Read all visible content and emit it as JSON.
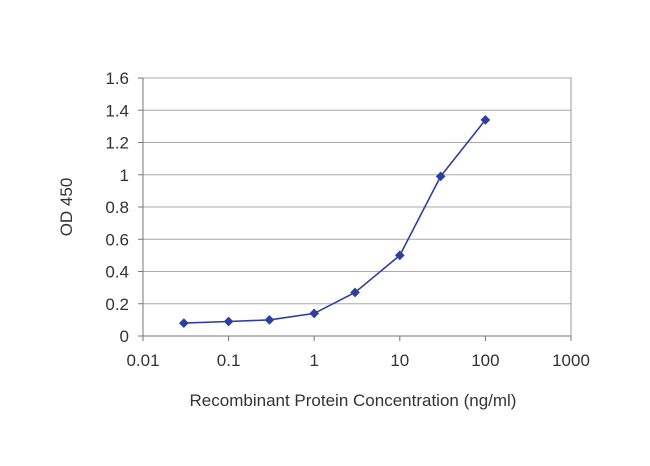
{
  "chart_data": {
    "type": "line",
    "title": "",
    "xlabel": "Recombinant Protein Concentration (ng/ml)",
    "ylabel": "OD 450",
    "x_scale": "log",
    "xlim": [
      0.01,
      1000
    ],
    "ylim": [
      0,
      1.6
    ],
    "x_ticks": [
      0.01,
      0.1,
      1,
      10,
      100,
      1000
    ],
    "x_tick_labels": [
      "0.01",
      "0.1",
      "1",
      "10",
      "100",
      "1000"
    ],
    "y_ticks": [
      0,
      0.2,
      0.4,
      0.6,
      0.8,
      1,
      1.2,
      1.4,
      1.6
    ],
    "y_tick_labels": [
      "0",
      "0.2",
      "0.4",
      "0.6",
      "0.8",
      "1",
      "1.2",
      "1.4",
      "1.6"
    ],
    "grid": "horizontal",
    "legend": "none",
    "series": [
      {
        "color": "#2d3f9e",
        "marker": "diamond",
        "x": [
          0.03,
          0.1,
          0.3,
          1,
          3,
          10,
          30,
          100
        ],
        "y": [
          0.08,
          0.09,
          0.1,
          0.14,
          0.27,
          0.5,
          0.99,
          1.34
        ]
      }
    ]
  }
}
